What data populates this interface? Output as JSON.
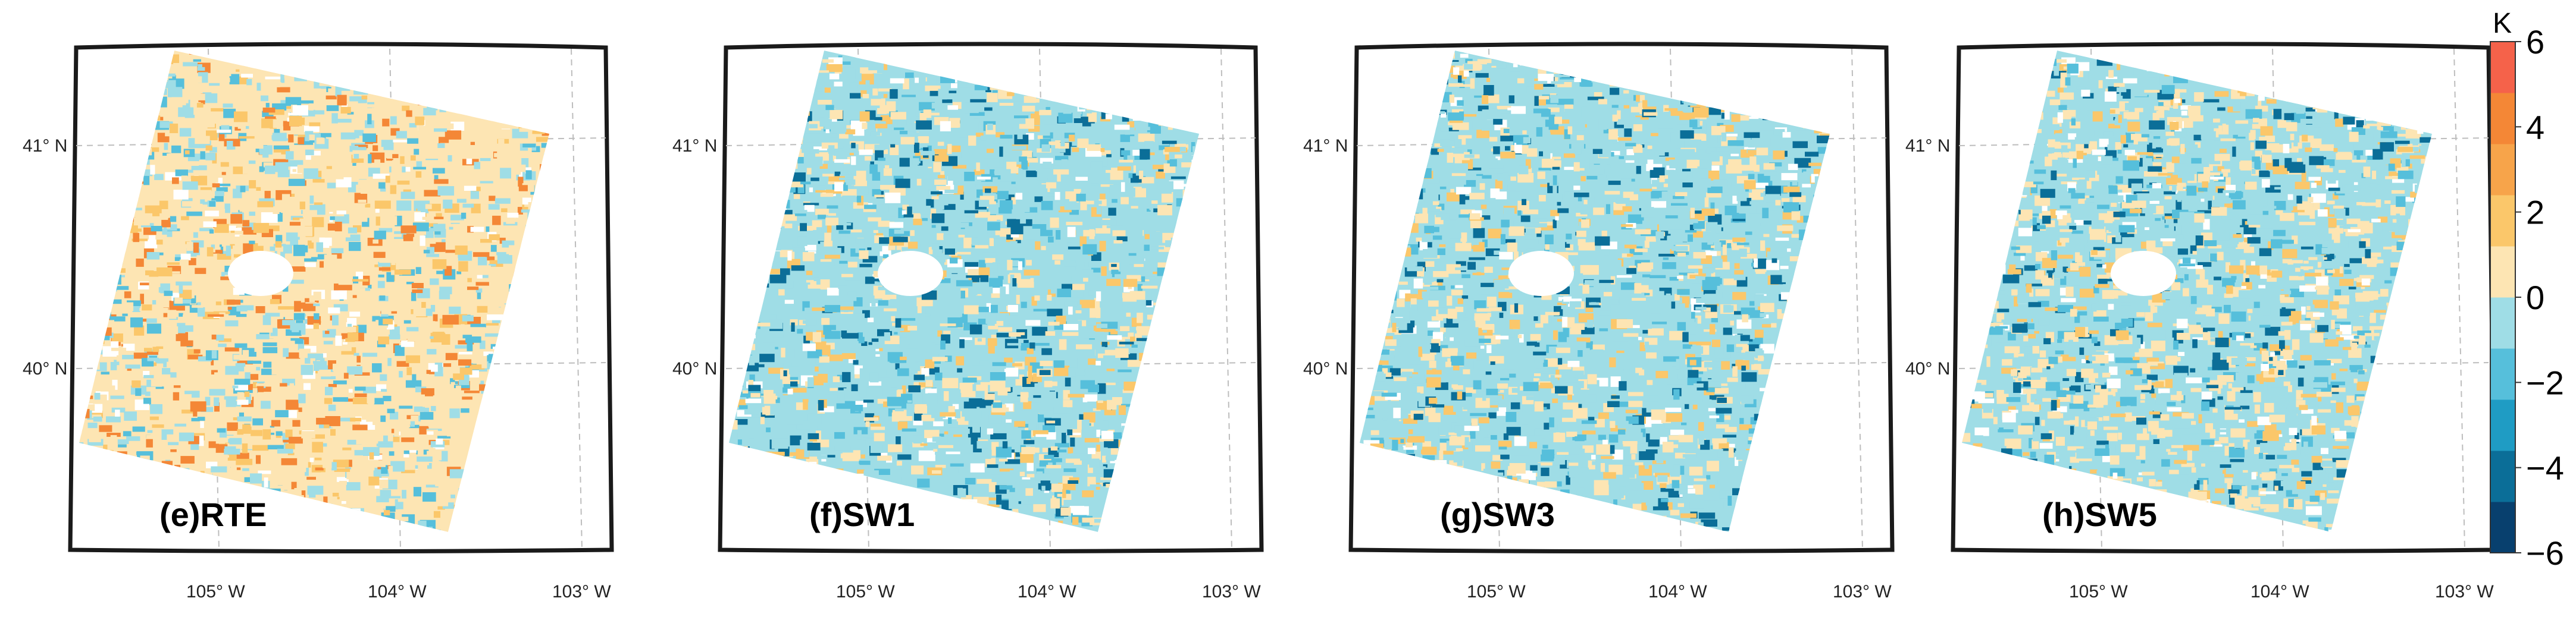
{
  "figure": {
    "panels": [
      {
        "id": "e",
        "label": "(e)RTE"
      },
      {
        "id": "f",
        "label": "(f)SW1"
      },
      {
        "id": "g",
        "label": "(g)SW3"
      },
      {
        "id": "h",
        "label": "(h)SW5"
      }
    ],
    "latitude_labels": [
      "41° N",
      "40° N"
    ],
    "longitude_labels": [
      "105° W",
      "104° W",
      "103° W"
    ],
    "colorbar": {
      "unit": "K",
      "min": -6,
      "max": 6,
      "tick_labels": [
        "6",
        "4",
        "2",
        "0",
        "−2",
        "−4",
        "−6"
      ],
      "colors": [
        "#08406e",
        "#0b6e98",
        "#1f9cc4",
        "#56bfdb",
        "#9fdde6",
        "#fde5b3",
        "#fbc76a",
        "#f7a44a",
        "#f48736",
        "#f5624a"
      ]
    },
    "map_colors": {
      "positive_light": "#fde5b3",
      "positive_mid": "#fbc76a",
      "positive_strong": "#f48736",
      "negative_light": "#9fdde6",
      "negative_mid": "#56bfdb",
      "negative_strong": "#0b6e98",
      "no_data": "#ffffff"
    }
  }
}
